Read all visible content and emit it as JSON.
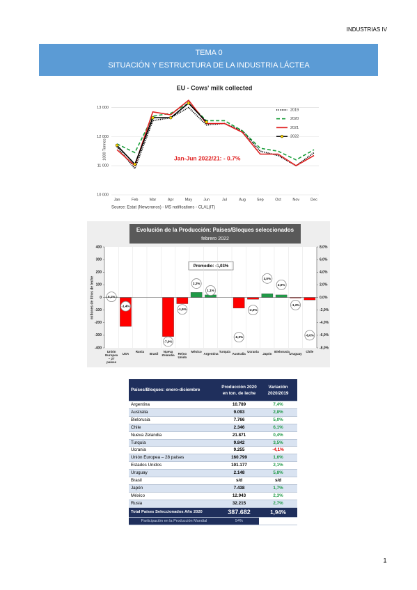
{
  "header": {
    "right": "INDUSTRIAS IV"
  },
  "banner": {
    "title": "TEMA 0",
    "subtitle": "SITUACIÓN Y ESTRUCTURA DE LA INDUSTRIA LÁCTEA"
  },
  "chart_data": [
    {
      "type": "line",
      "title": "EU - Cows' milk collected",
      "y_label": "1000 Tonnes",
      "categories": [
        "Jan",
        "Feb",
        "Mar",
        "Apr",
        "May",
        "Jun",
        "Jul",
        "Aug",
        "Sep",
        "Oct",
        "Nov",
        "Dec"
      ],
      "series": [
        {
          "name": "2019",
          "color": "#000000",
          "style": "dotted",
          "values": [
            11650,
            10900,
            12550,
            12650,
            13000,
            12400,
            12450,
            12200,
            11500,
            11350,
            11000,
            11450
          ]
        },
        {
          "name": "2020",
          "color": "#1a9e3a",
          "style": "dashed",
          "values": [
            11750,
            11450,
            12700,
            12800,
            13150,
            12550,
            12550,
            12200,
            11600,
            11500,
            11200,
            11550
          ]
        },
        {
          "name": "2021",
          "color": "#e02020",
          "style": "solid",
          "values": [
            11550,
            11000,
            12850,
            12750,
            13250,
            12450,
            12450,
            12150,
            11400,
            11400,
            11000,
            11350
          ]
        },
        {
          "name": "2022",
          "color": "#000000",
          "style": "solid",
          "marker_color": "#ffd700",
          "values": [
            11700,
            11050,
            12650,
            12650,
            13150,
            12500,
            null,
            null,
            null,
            null,
            null,
            null
          ]
        }
      ],
      "ylim": [
        10000,
        13300
      ],
      "yticks": [
        {
          "value": 10000,
          "label": "10 000"
        },
        {
          "value": 11000,
          "label": "11 000"
        },
        {
          "value": 12000,
          "label": "12 000"
        },
        {
          "value": 13000,
          "label": "13 000"
        }
      ],
      "grid": true,
      "legend": "right",
      "annotation": "Jan-Jun 2022/21: - 0.7%",
      "source": "Source: Estat (Newcronos) - MS notifications - CLAL(IT)"
    },
    {
      "type": "bar",
      "title": "Evolución de la Producción: Países/Bloques seleccionados",
      "subtitle": "febrero 2022",
      "y_label": "millones de litros de leche",
      "categories": [
        "Unión Europea – 27 países",
        "USA",
        "Rusia",
        "Brasil",
        "Nueva Zelandia",
        "Reino Unido",
        "México",
        "Argentina",
        "Turquía",
        "Australia",
        "Ucrania",
        "Japón",
        "Bielorusia",
        "Uruguay",
        "Chile"
      ],
      "series": [
        {
          "values": [
            5,
            -230,
            null,
            null,
            -310,
            -50,
            40,
            20,
            null,
            -85,
            -15,
            30,
            20,
            -5,
            -20
          ]
        },
        {
          "axis": "y2",
          "values": [
            0.1,
            -1.4,
            null,
            null,
            -7.0,
            -1.9,
            2.2,
            1.1,
            null,
            -6.3,
            -2.0,
            3.0,
            2.0,
            -1.2,
            -6.0
          ],
          "value_labels": [
            "0,1%",
            "-1,4%",
            null,
            null,
            "-7,0%",
            "-1,9%",
            "2,2%",
            "1,1%",
            null,
            "-6,3%",
            "-2,0%",
            "3,0%",
            "2,0%",
            "-1,2%",
            "-6,0%"
          ]
        }
      ],
      "positive_color": "#1f9a47",
      "negative_color": "#ff0000",
      "ylim": [
        -400,
        400
      ],
      "yticks": [
        -400,
        -300,
        -200,
        -100,
        0,
        100,
        200,
        300,
        400
      ],
      "y2lim": [
        -8,
        8
      ],
      "y2ticks": [
        {
          "value": -8,
          "label": "-8,0%"
        },
        {
          "value": -6,
          "label": "-6,0%"
        },
        {
          "value": -4,
          "label": "-4,0%"
        },
        {
          "value": -2,
          "label": "-2,0%"
        },
        {
          "value": 0,
          "label": "0,0%"
        },
        {
          "value": 2,
          "label": "2,0%"
        },
        {
          "value": 4,
          "label": "4,0%"
        },
        {
          "value": 6,
          "label": "6,0%"
        },
        {
          "value": 8,
          "label": "8,0%"
        }
      ],
      "annotation": "Promedio: -1,03%"
    }
  ],
  "table": {
    "columns": [
      "Países/Bloques: enero-diciembre",
      "Producción 2020 en ton. de leche",
      "Variación 2020/2019"
    ],
    "rows": [
      [
        "Argentina",
        "10.789",
        "7,4%"
      ],
      [
        "Australia",
        "9.093",
        "2,8%"
      ],
      [
        "Bielorusia",
        "7.766",
        "5,0%"
      ],
      [
        "Chile",
        "2.346",
        "6,1%"
      ],
      [
        "Nueva Zelandia",
        "21.871",
        "0,4%"
      ],
      [
        "Turquía",
        "9.842",
        "3,5%"
      ],
      [
        "Ucrania",
        "9.255",
        "-4,1%"
      ],
      [
        "Unión Europea – 28 países",
        "160.799",
        "1,6%"
      ],
      [
        "Estados Unidos",
        "101.177",
        "2,1%"
      ],
      [
        "Uruguay",
        "2.148",
        "5,8%"
      ],
      [
        "Brasil",
        "s/d",
        "s/d"
      ],
      [
        "Japón",
        "7.438",
        "1,7%"
      ],
      [
        "México",
        "12.943",
        "2,3%"
      ],
      [
        "Rusia",
        "32.215",
        "2,7%"
      ]
    ],
    "total": [
      "Total Países Seleccionados Año 2020",
      "387.682",
      "1,94%"
    ],
    "participation": [
      "Participación en la Producción Mundial",
      "54%"
    ]
  },
  "footer": {
    "page": "1"
  }
}
